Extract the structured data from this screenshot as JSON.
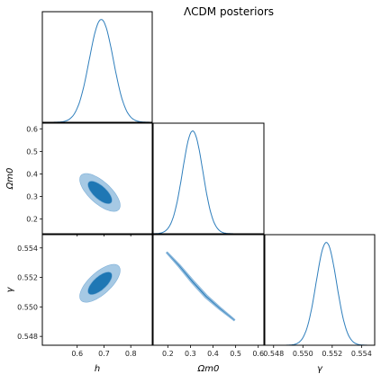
{
  "title": "ΛCDM posteriors",
  "colors": {
    "line": "#2e7ebc",
    "contour_68": "#1f77b4",
    "contour_95": "#a6c9e4",
    "contour_95_stroke": "#7fb0d8"
  },
  "params": [
    {
      "key": "h",
      "label": "h"
    },
    {
      "key": "om",
      "label": "Ωm0"
    },
    {
      "key": "gamma",
      "label": "γ"
    }
  ],
  "chart_data": {
    "type": "triangle",
    "params": {
      "h": {
        "range": [
          0.47,
          0.88
        ],
        "ticks": [
          "0.6",
          "0.7",
          "0.8"
        ],
        "tick_values": [
          0.6,
          0.7,
          0.8
        ],
        "mean": 0.69,
        "sigma": 0.045
      },
      "om": {
        "range": [
          0.135,
          0.625
        ],
        "ticks": [
          "0.2",
          "0.3",
          "0.4",
          "0.5",
          "0.6"
        ],
        "tick_values": [
          0.2,
          0.3,
          0.4,
          0.5,
          0.6
        ],
        "mean": 0.31,
        "sigma": 0.045
      },
      "gamma": {
        "range": [
          0.5474,
          0.5549
        ],
        "ticks": [
          "0.548",
          "0.550",
          "0.552",
          "0.554"
        ],
        "tick_values": [
          0.548,
          0.55,
          0.552,
          0.554
        ],
        "mean": 0.5516,
        "sigma": 0.0007
      }
    },
    "diag": [
      {
        "param": "h"
      },
      {
        "param": "om"
      },
      {
        "param": "gamma"
      }
    ],
    "contours": [
      {
        "x": "h",
        "y": "om",
        "c95": {
          "cx": 0.685,
          "cy": 0.318,
          "a": 0.105,
          "b": 0.045,
          "angle": -42
        },
        "c68": {
          "cx": 0.685,
          "cy": 0.318,
          "a": 0.063,
          "b": 0.027,
          "angle": -42
        }
      },
      {
        "x": "h",
        "y": "gamma",
        "c95": {
          "cx": 0.685,
          "cy": 0.5516,
          "a": 0.105,
          "b": 0.045,
          "angle": 42
        },
        "c68": {
          "cx": 0.685,
          "cy": 0.5516,
          "a": 0.063,
          "b": 0.027,
          "angle": 42
        }
      },
      {
        "x": "om",
        "y": "gamma",
        "banana": [
          [
            0.195,
            0.5537
          ],
          [
            0.25,
            0.5528
          ],
          [
            0.31,
            0.5517
          ],
          [
            0.37,
            0.5507
          ],
          [
            0.43,
            0.5499
          ],
          [
            0.495,
            0.5491
          ]
        ],
        "width95": 0.016,
        "width68": 0.006
      }
    ]
  }
}
